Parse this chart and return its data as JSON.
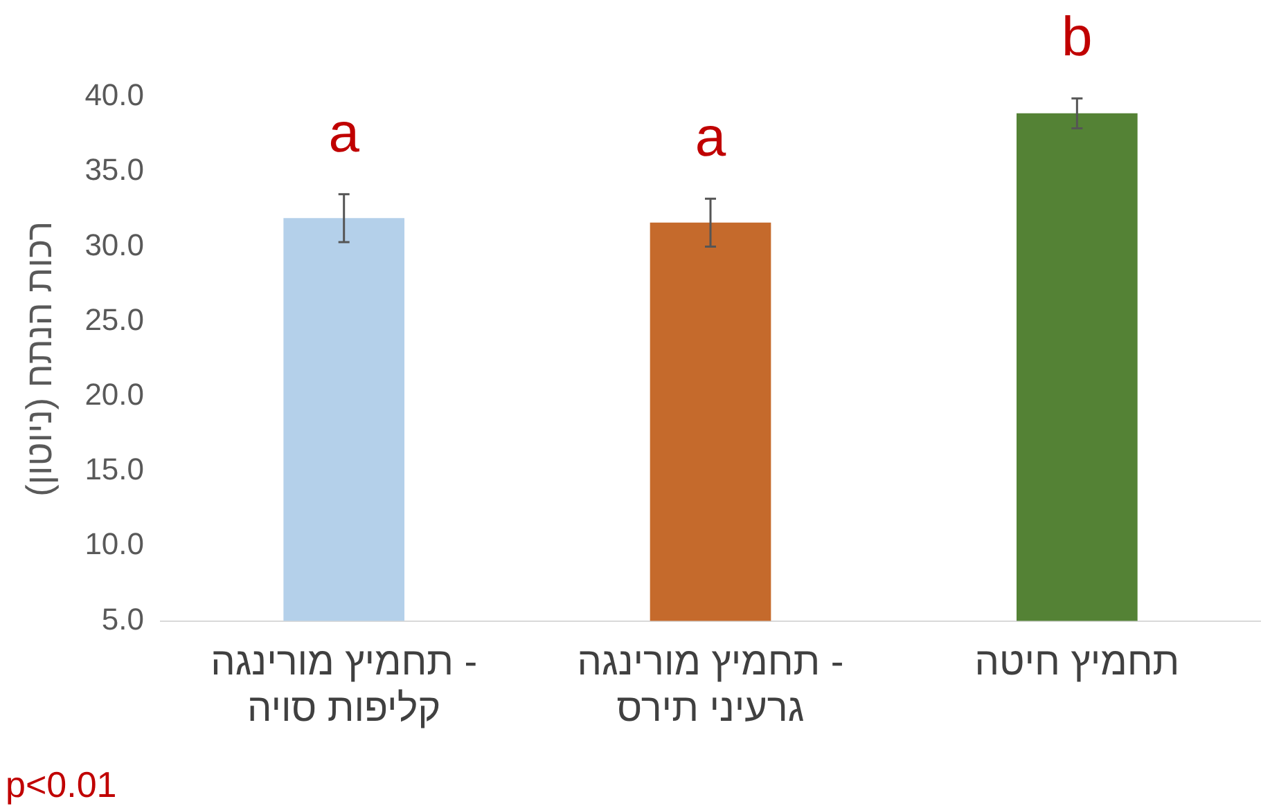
{
  "chart_data": {
    "type": "bar",
    "ylabel": "רכות הנתח (ניוטון)",
    "categories": [
      "תחמיץ מורינגה - קליפות סויה",
      "תחמיץ מורינגה - גרעיני תירס",
      "תחמיץ חיטה"
    ],
    "values": [
      31.9,
      31.6,
      38.9
    ],
    "colors": [
      "#b4d0ea",
      "#c56a2c",
      "#548235"
    ],
    "errors": [
      1.6,
      1.6,
      1.0
    ],
    "ylim": [
      5,
      40
    ],
    "yticks": [
      {
        "value": 5,
        "label": "5.0"
      },
      {
        "value": 10,
        "label": "10.0"
      },
      {
        "value": 15,
        "label": "15.0"
      },
      {
        "value": 20,
        "label": "20.0"
      },
      {
        "value": 25,
        "label": "25.0"
      },
      {
        "value": 30,
        "label": "30.0"
      },
      {
        "value": 35,
        "label": "35.0"
      },
      {
        "value": 40,
        "label": "40.0"
      }
    ],
    "grid": false,
    "legend": false,
    "annotations": [
      "a",
      "a",
      "b",
      "p<0.01"
    ]
  }
}
